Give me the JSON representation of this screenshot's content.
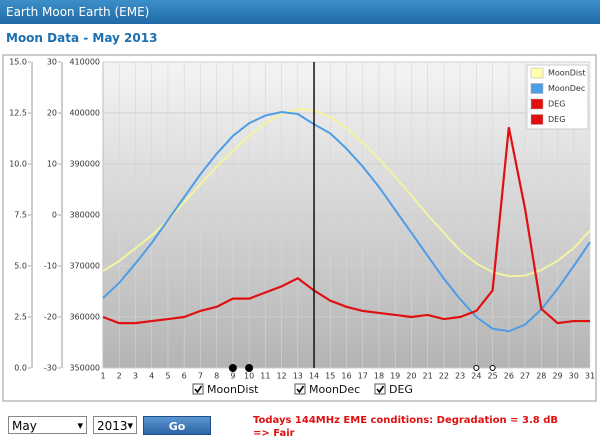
{
  "header": {
    "title": "Earth Moon Earth (EME)",
    "subtitle": "Moon Data - May 2013"
  },
  "chart_data": {
    "type": "line",
    "x": [
      1,
      2,
      3,
      4,
      5,
      6,
      7,
      8,
      9,
      10,
      11,
      12,
      13,
      14,
      15,
      16,
      17,
      18,
      19,
      20,
      21,
      22,
      23,
      24,
      25,
      26,
      27,
      28,
      29,
      30,
      31
    ],
    "xlim": [
      1,
      31
    ],
    "xticks": [
      1,
      2,
      3,
      4,
      5,
      6,
      7,
      8,
      9,
      10,
      11,
      12,
      13,
      14,
      15,
      16,
      17,
      18,
      19,
      20,
      21,
      22,
      23,
      24,
      25,
      26,
      27,
      28,
      29,
      30,
      31
    ],
    "ylim": [
      350000,
      410000
    ],
    "yticks": [
      350000,
      360000,
      370000,
      380000,
      390000,
      400000,
      410000
    ],
    "y2lim": [
      -30,
      30
    ],
    "y2ticks": [
      -30,
      -20,
      -10,
      0,
      10,
      20,
      30
    ],
    "y3lim": [
      0,
      15
    ],
    "y3ticks": [
      {
        "value": 0,
        "label": "0.0"
      },
      {
        "value": 2.5,
        "label": "2.5"
      },
      {
        "value": 5,
        "label": "5.0"
      },
      {
        "value": 7.5,
        "label": "7.5"
      },
      {
        "value": 10,
        "label": "10.0"
      },
      {
        "value": 12.5,
        "label": "12.5"
      },
      {
        "value": 15,
        "label": "15.0"
      }
    ],
    "grid": true,
    "series": [
      {
        "name": "MoonDist",
        "color": "#f3f3a0",
        "axis": "y",
        "values": [
          369000,
          371000,
          373500,
          376000,
          379000,
          382500,
          386000,
          389500,
          392500,
          395500,
          398000,
          399800,
          400800,
          400500,
          399200,
          397000,
          394200,
          391000,
          387500,
          383800,
          380000,
          376500,
          373000,
          370500,
          368800,
          368000,
          368100,
          369200,
          371000,
          373500,
          377000
        ]
      },
      {
        "name": "MoonDec",
        "color": "#4d9de6",
        "axis": "y2",
        "values": [
          -16.3,
          -13.3,
          -9.5,
          -5.5,
          -1,
          3.5,
          8,
          12,
          15.5,
          18,
          19.5,
          20.2,
          19.8,
          17.8,
          16,
          13,
          9.5,
          5.5,
          1,
          -3.5,
          -8,
          -12.5,
          -16.5,
          -20,
          -22.3,
          -22.8,
          -21.5,
          -18.5,
          -14.5,
          -10,
          -5.3
        ]
      },
      {
        "name": "DEG",
        "color": "#e01010",
        "axis": "y3",
        "values": [
          2.5,
          2.2,
          2.2,
          2.3,
          2.4,
          2.5,
          2.8,
          3.0,
          3.4,
          3.4,
          3.7,
          4.0,
          4.4,
          3.8,
          3.3,
          3.0,
          2.8,
          2.7,
          2.6,
          2.5,
          2.6,
          2.4,
          2.5,
          2.8,
          3.8,
          11.8,
          7.8,
          2.9,
          2.2,
          2.3,
          2.3
        ]
      }
    ],
    "legend": [
      {
        "name": "MoonDist",
        "color": "#ffffb0"
      },
      {
        "name": "MoonDec",
        "color": "#4d9de6"
      },
      {
        "name": "DEG",
        "color": "#e01010"
      },
      {
        "name": "DEG",
        "color": "#e01010"
      }
    ],
    "legend_position": "upper right",
    "cursor_x": 14,
    "markers": [
      {
        "x": 9,
        "color": "#000000"
      },
      {
        "x": 10,
        "color": "#000000"
      },
      {
        "x": 24,
        "color": "#ffffff"
      },
      {
        "x": 25,
        "color": "#ffffff"
      }
    ],
    "toggles": [
      "MoonDist",
      "MoonDec",
      "DEG"
    ]
  },
  "form": {
    "month": "May",
    "year": "2013",
    "button": "Go",
    "status_line1": "Todays 144MHz EME conditions: Degradation = 3.8 dB",
    "status_line2": "=> Fair"
  }
}
